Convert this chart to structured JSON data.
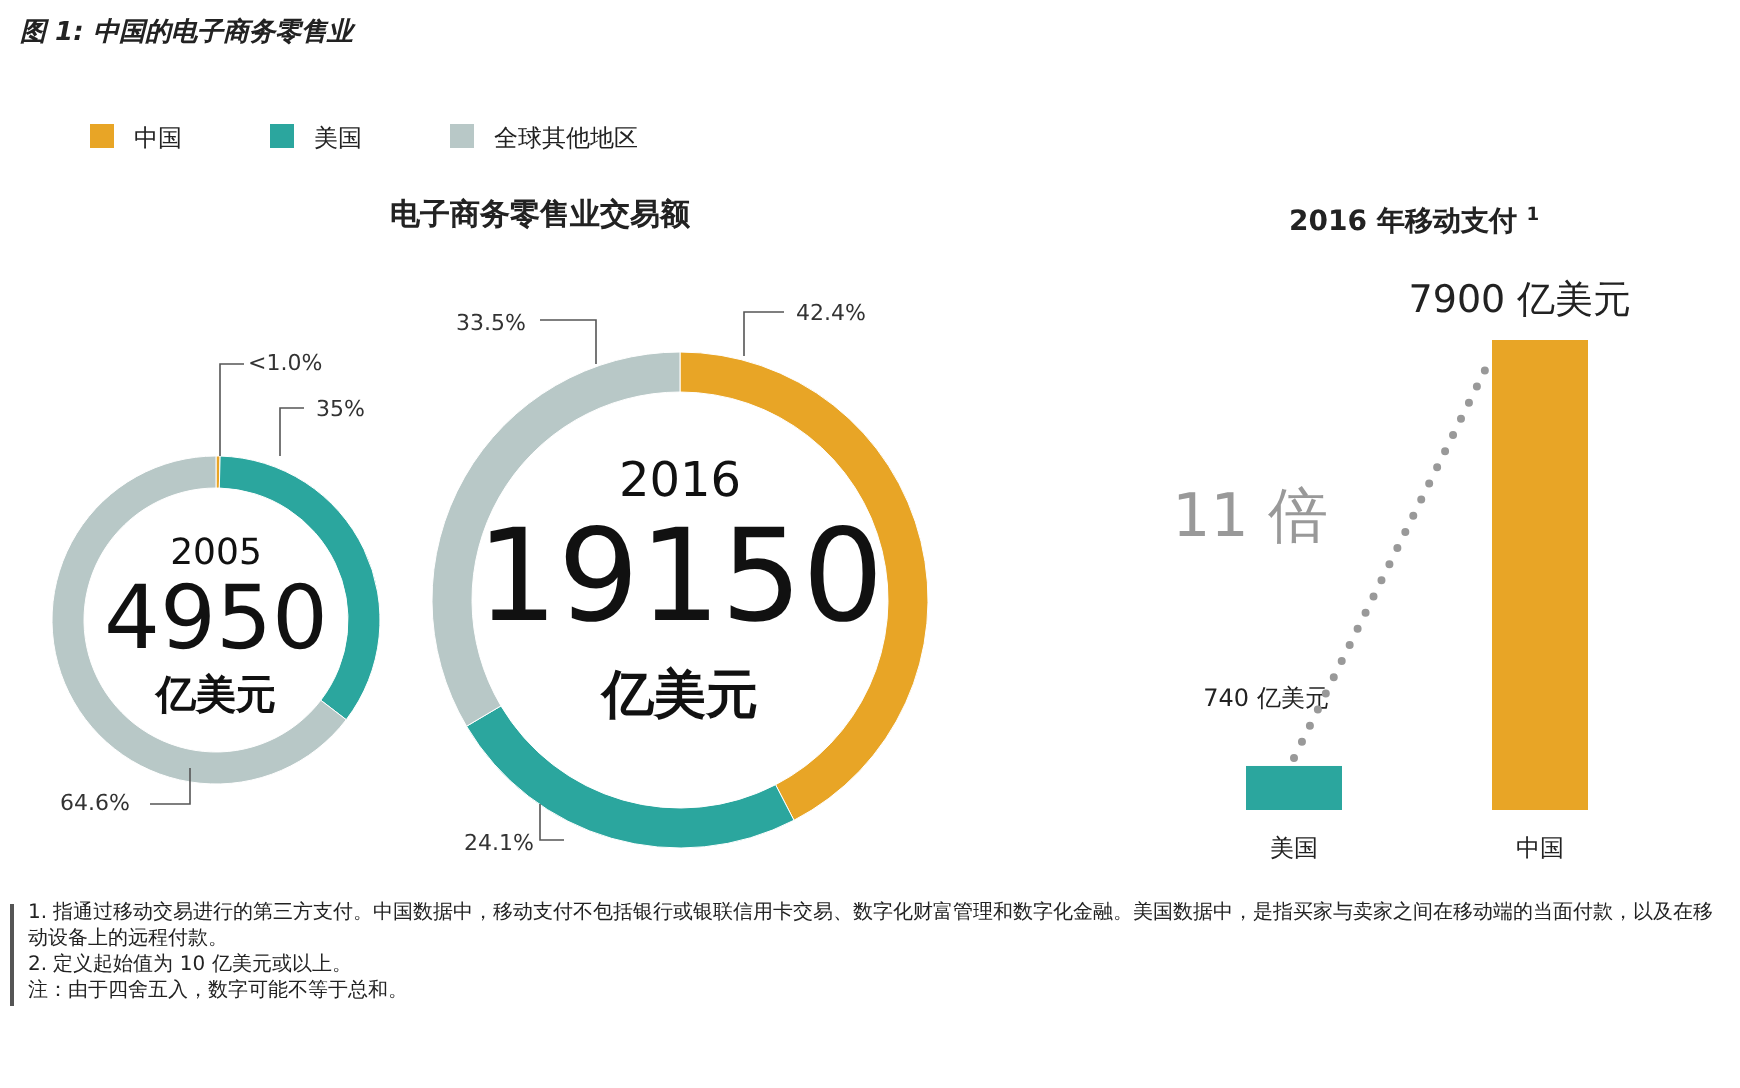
{
  "chart_data": [
    {
      "type": "other",
      "title": "图 1:  中国的电子商务零售业",
      "annotations": [
        "1.   指通过移动交易进行的第三方支付。中国数据中，移动支付不包括银行或银联信用卡交易、数字化财富管理和数字化金融。美国数据中，是指买家与卖家之间在移动端的当面付款，以及在移动设备上的远程付款。",
        "2.   定义起始值为 10 亿美元或以上。",
        "注：由于四舍五入，数字可能不等于总和。"
      ]
    },
    {
      "type": "donut",
      "title": "电子商务零售业交易额",
      "categories": [
        "中国",
        "美国",
        "全球其他地区"
      ],
      "colors": [
        "#e8a526",
        "#2ba69e",
        "#b8c8c7"
      ],
      "legend": "top left",
      "series": [
        {
          "values": [
            0.4,
            35,
            64.6
          ],
          "value_labels": [
            "<1.0%",
            "35%",
            "64.6%"
          ]
        },
        {
          "values": [
            42.4,
            24.1,
            33.5
          ],
          "value_labels": [
            "42.4%",
            "24.1%",
            "33.5%"
          ]
        }
      ],
      "annotations": [
        "2005",
        "4950",
        "亿美元",
        "2016",
        "19150",
        "亿美元"
      ]
    },
    {
      "type": "bar",
      "title": "2016 年移动支付 $^{1}$",
      "categories": [
        "美国",
        "中国"
      ],
      "values": [
        740,
        7900
      ],
      "colors": [
        "#2ba69e",
        "#e8a526"
      ],
      "value_labels": [
        "740 亿美元",
        "7900 亿美元"
      ],
      "annotations": [
        "11 倍"
      ]
    }
  ]
}
